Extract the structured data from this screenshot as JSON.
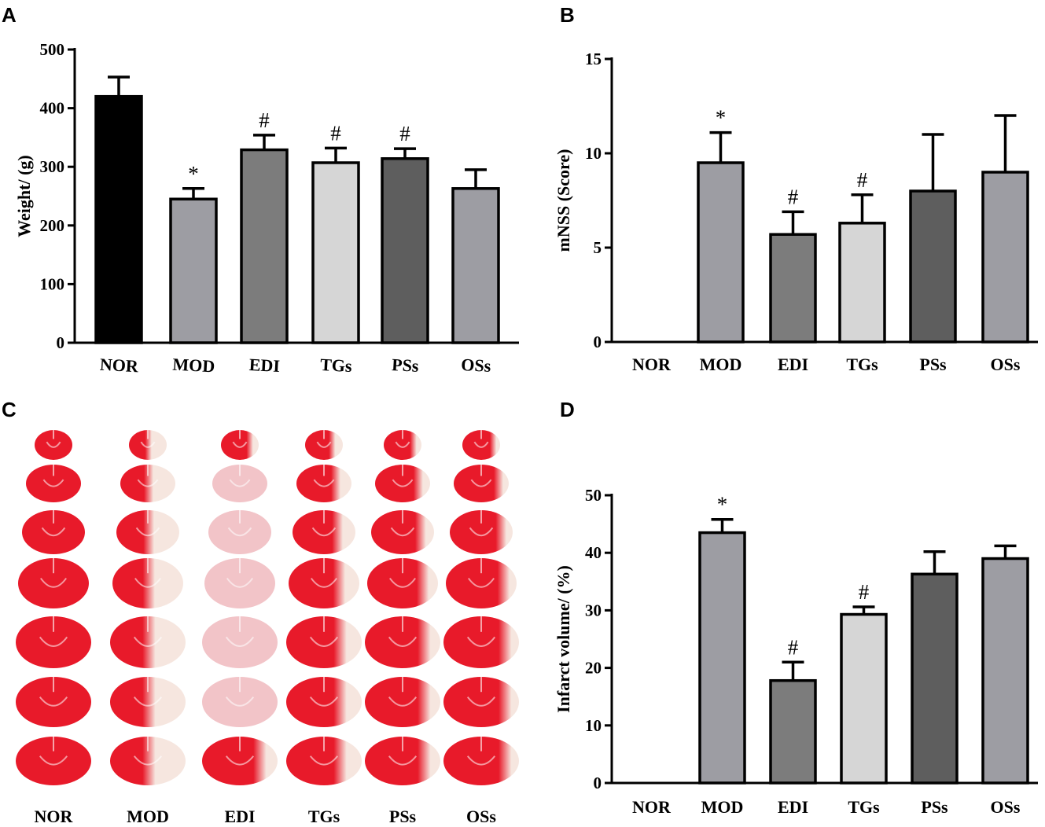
{
  "colors": {
    "NOR": "#000000",
    "MOD": "#9d9da3",
    "EDI": "#7c7c7c",
    "TGs": "#d6d6d6",
    "PSs": "#5e5e5e",
    "OSs": "#9d9da3",
    "tissue_red": "#e81a2a",
    "tissue_pale": "#f6e6df"
  },
  "chart_data": [
    {
      "panel": "A",
      "type": "bar",
      "categories": [
        "NOR",
        "MOD",
        "EDI",
        "TGs",
        "PSs",
        "OSs"
      ],
      "values": [
        420,
        245,
        329,
        307,
        314,
        263
      ],
      "errors": [
        33,
        18,
        25,
        25,
        17,
        32
      ],
      "annotations": [
        "",
        "*",
        "#",
        "#",
        "#",
        ""
      ],
      "ylabel": "Weight/ (g)",
      "ylim": [
        0,
        500
      ],
      "yticks": [
        0,
        100,
        200,
        300,
        400,
        500
      ]
    },
    {
      "panel": "B",
      "type": "bar",
      "categories": [
        "NOR",
        "MOD",
        "EDI",
        "TGs",
        "PSs",
        "OSs"
      ],
      "values": [
        0,
        9.5,
        5.7,
        6.3,
        8.0,
        9.0
      ],
      "errors": [
        0,
        1.6,
        1.2,
        1.5,
        3.0,
        3.0
      ],
      "annotations": [
        "",
        "*",
        "#",
        "#",
        "",
        ""
      ],
      "ylabel": "mNSS (Score)",
      "ylim": [
        0,
        15
      ],
      "yticks": [
        0,
        5,
        10,
        15
      ]
    },
    {
      "panel": "D",
      "type": "bar",
      "categories": [
        "NOR",
        "MOD",
        "EDI",
        "TGs",
        "PSs",
        "OSs"
      ],
      "values": [
        0,
        43.5,
        17.8,
        29.3,
        36.3,
        39.0
      ],
      "errors": [
        0,
        2.3,
        3.2,
        1.3,
        3.9,
        2.2
      ],
      "annotations": [
        "",
        "*",
        "#",
        "#",
        "",
        ""
      ],
      "ylabel": "Infarct volume/ (%)",
      "ylim": [
        0,
        50
      ],
      "yticks": [
        0,
        10,
        20,
        30,
        40,
        50
      ]
    }
  ],
  "panelC": {
    "letter": "C",
    "groups": [
      "NOR",
      "MOD",
      "EDI",
      "TGs",
      "PSs",
      "OSs"
    ],
    "slices_per_group": 7,
    "description_labels": [
      "NOR",
      "MOD",
      "EDI",
      "TGs",
      "PSs",
      "OSs"
    ]
  }
}
